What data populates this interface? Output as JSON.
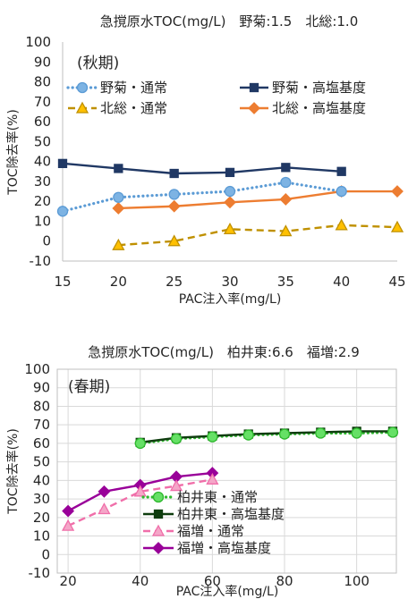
{
  "chart_data": [
    {
      "type": "line",
      "title": "急撹原水TOC(mg/L)　野菊:1.5　北総:1.0",
      "annotation": "(秋期)",
      "xlabel": "PAC注入率(mg/L)",
      "ylabel": "TOC除去率(%)",
      "xlim": [
        15,
        45
      ],
      "ylim": [
        -10,
        100
      ],
      "xticks": [
        15,
        20,
        25,
        30,
        35,
        40,
        45
      ],
      "yticks": [
        -10,
        0,
        10,
        20,
        30,
        40,
        50,
        60,
        70,
        80,
        90,
        100
      ],
      "grid": false,
      "legend_position": "top",
      "series": [
        {
          "name": "野菊・通常",
          "line_style": "dotted",
          "marker": "circle",
          "color": "#5B9BD5",
          "marker_fill": "#7DB3E3",
          "x": [
            15,
            20,
            25,
            30,
            35,
            40
          ],
          "y": [
            15,
            22,
            23.5,
            25,
            29.5,
            25
          ]
        },
        {
          "name": "野菊・高塩基度",
          "line_style": "solid",
          "marker": "square",
          "color": "#203864",
          "marker_fill": "#203864",
          "x": [
            15,
            20,
            25,
            30,
            35,
            40
          ],
          "y": [
            39,
            36.5,
            34,
            34.5,
            37,
            35
          ]
        },
        {
          "name": "北総・通常",
          "line_style": "dashed",
          "marker": "triangle",
          "color": "#BF9000",
          "marker_fill": "#FFC000",
          "x": [
            20,
            25,
            30,
            35,
            40,
            45
          ],
          "y": [
            -2,
            0,
            6,
            5,
            8,
            7
          ]
        },
        {
          "name": "北総・高塩基度",
          "line_style": "solid",
          "marker": "diamond",
          "color": "#ED7D31",
          "marker_fill": "#ED7D31",
          "x": [
            20,
            25,
            30,
            35,
            40,
            45
          ],
          "y": [
            16.5,
            17.5,
            19.5,
            21,
            25,
            25
          ]
        }
      ]
    },
    {
      "type": "line",
      "title": "急撹原水TOC(mg/L)　柏井東:6.6　福増:2.9",
      "annotation": "(春期)",
      "xlabel": "PAC注入率(mg/L)",
      "ylabel": "TOC除去率(%)",
      "xlim": [
        17,
        111
      ],
      "ylim": [
        -10,
        100
      ],
      "xticks": [
        20,
        40,
        60,
        80,
        100
      ],
      "yticks": [
        -10,
        0,
        10,
        20,
        30,
        40,
        50,
        60,
        70,
        80,
        90,
        100
      ],
      "grid": true,
      "legend_position": "lower-center",
      "series": [
        {
          "name": "柏井東・通常",
          "line_style": "dotted",
          "marker": "circle",
          "color": "#2EB82E",
          "marker_fill": "#66E066",
          "x": [
            40,
            50,
            60,
            70,
            80,
            90,
            100,
            110
          ],
          "y": [
            60,
            62.5,
            63.5,
            64.5,
            65,
            65.5,
            65.5,
            66
          ]
        },
        {
          "name": "柏井東・高塩基度",
          "line_style": "solid",
          "marker": "square",
          "color": "#0F3D0F",
          "marker_fill": "#0F3D0F",
          "x": [
            40,
            50,
            60,
            70,
            80,
            90,
            100,
            110
          ],
          "y": [
            60.5,
            63,
            64,
            65,
            65.5,
            66,
            66.5,
            66.5
          ]
        },
        {
          "name": "福増・通常",
          "line_style": "dashed",
          "marker": "triangle",
          "color": "#F06EA9",
          "marker_fill": "#F4A6C8",
          "x": [
            20,
            30,
            40,
            50,
            60
          ],
          "y": [
            15.5,
            24.5,
            34,
            37,
            40.5
          ]
        },
        {
          "name": "福増・高塩基度",
          "line_style": "solid",
          "marker": "diamond",
          "color": "#990099",
          "marker_fill": "#990099",
          "x": [
            20,
            30,
            40,
            50,
            60
          ],
          "y": [
            23.5,
            34,
            37.5,
            42,
            44
          ]
        }
      ]
    }
  ]
}
